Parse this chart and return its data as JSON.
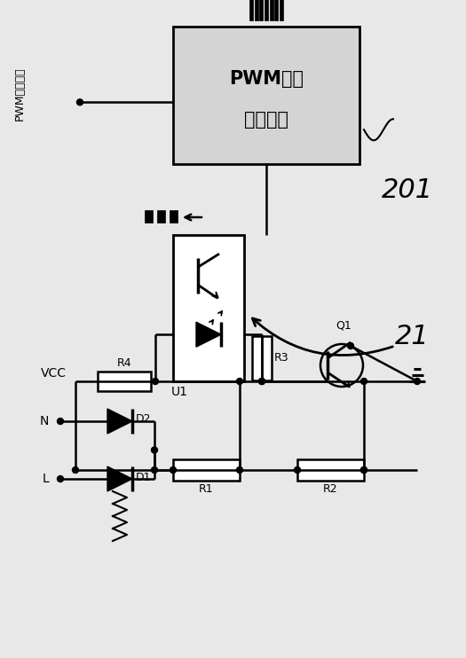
{
  "bg_color": "#e8e8e8",
  "line_color": "#000000",
  "pwm_box_label1": "PWM信号",
  "pwm_box_label2": "转换电路",
  "label_201": "201",
  "label_21": "21",
  "label_U1": "U1",
  "label_VCC": "VCC",
  "label_N": "N",
  "label_L": "L",
  "label_R1": "R1",
  "label_R2": "R2",
  "label_R3": "R3",
  "label_R4": "R4",
  "label_D1": "D1",
  "label_D2": "D2",
  "label_Q1": "Q1",
  "label_pwm_out": "PWM信号输出"
}
